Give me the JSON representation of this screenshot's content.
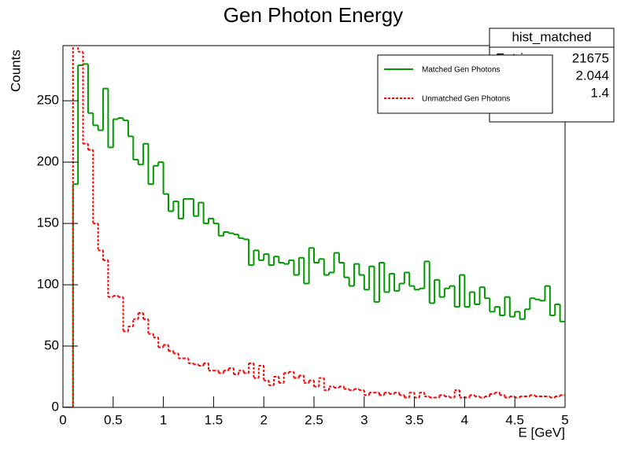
{
  "chart_data": {
    "type": "histogram",
    "title": "Gen Photon Energy",
    "x_label": "E [GeV]",
    "y_label": "Counts",
    "bins": [
      0,
      0.05,
      0.1,
      0.15,
      0.2,
      0.25,
      0.3,
      0.35,
      0.4,
      0.45,
      0.5,
      0.55,
      0.6,
      0.65,
      0.7,
      0.75,
      0.8,
      0.85,
      0.9,
      0.95,
      1,
      1.05,
      1.1,
      1.15,
      1.2,
      1.25,
      1.3,
      1.35,
      1.4,
      1.45,
      1.5,
      1.55,
      1.6,
      1.65,
      1.7,
      1.75,
      1.8,
      1.85,
      1.9,
      1.95,
      2,
      2.05,
      2.1,
      2.15,
      2.2,
      2.25,
      2.3,
      2.35,
      2.4,
      2.45,
      2.5,
      2.55,
      2.6,
      2.65,
      2.7,
      2.75,
      2.8,
      2.85,
      2.9,
      2.95,
      3,
      3.05,
      3.1,
      3.15,
      3.2,
      3.25,
      3.3,
      3.35,
      3.4,
      3.45,
      3.5,
      3.55,
      3.6,
      3.65,
      3.7,
      3.75,
      3.8,
      3.85,
      3.9,
      3.95,
      4,
      4.05,
      4.1,
      4.15,
      4.2,
      4.25,
      4.3,
      4.35,
      4.4,
      4.45,
      4.5,
      4.55,
      4.6,
      4.65,
      4.7,
      4.75,
      4.8,
      4.85,
      4.9,
      4.95,
      5
    ],
    "series": [
      {
        "name": "Matched Gen Photons",
        "color": "#009900",
        "dash": false,
        "values": [
          0,
          0,
          182,
          279,
          280,
          240,
          230,
          226,
          260,
          212,
          235,
          236,
          234,
          221,
          202,
          198,
          215,
          182,
          197,
          200,
          174,
          160,
          168,
          154,
          170,
          170,
          156,
          167,
          150,
          154,
          150,
          140,
          143,
          142,
          141,
          138,
          137,
          116,
          128,
          120,
          125,
          116,
          123,
          118,
          117,
          120,
          108,
          122,
          101,
          130,
          118,
          121,
          108,
          110,
          126,
          118,
          106,
          99,
          117,
          108,
          96,
          115,
          86,
          118,
          94,
          109,
          95,
          101,
          110,
          99,
          96,
          97,
          119,
          85,
          104,
          90,
          97,
          99,
          82,
          108,
          82,
          94,
          84,
          98,
          89,
          78,
          82,
          75,
          90,
          74,
          78,
          72,
          80,
          89,
          88,
          87,
          99,
          75,
          84,
          70
        ]
      },
      {
        "name": "Unmatched Gen Photons",
        "color": "#ff0000",
        "dash": true,
        "values": [
          0,
          0,
          300,
          290,
          215,
          210,
          150,
          128,
          120,
          90,
          91,
          90,
          62,
          66,
          72,
          77,
          72,
          60,
          57,
          49,
          51,
          46,
          44,
          40,
          40,
          36,
          35,
          34,
          36,
          30,
          30,
          28,
          30,
          32,
          27,
          30,
          28,
          36,
          24,
          34,
          22,
          18,
          25,
          20,
          28,
          29,
          24,
          26,
          20,
          22,
          17,
          24,
          14,
          17,
          16,
          17,
          15,
          14,
          15,
          14,
          10,
          12,
          12,
          10,
          12,
          11,
          12,
          10,
          8,
          12,
          8,
          12,
          9,
          8,
          8,
          10,
          9,
          8,
          14,
          8,
          8,
          10,
          9,
          8,
          9,
          11,
          12,
          10,
          8,
          9,
          8,
          9,
          9,
          10,
          9,
          9,
          9,
          8,
          9,
          10
        ]
      }
    ],
    "xlim": [
      0,
      5
    ],
    "ylim": [
      0,
      295
    ],
    "xticks": [
      0,
      0.5,
      1,
      1.5,
      2,
      2.5,
      3,
      3.5,
      4,
      4.5,
      5
    ],
    "yticks": [
      0,
      50,
      100,
      150,
      200,
      250
    ],
    "stats": {
      "title": "hist_matched",
      "entries_label": "Entries",
      "entries": 21675,
      "mean": 2.044,
      "std_dev": 1.4
    }
  }
}
